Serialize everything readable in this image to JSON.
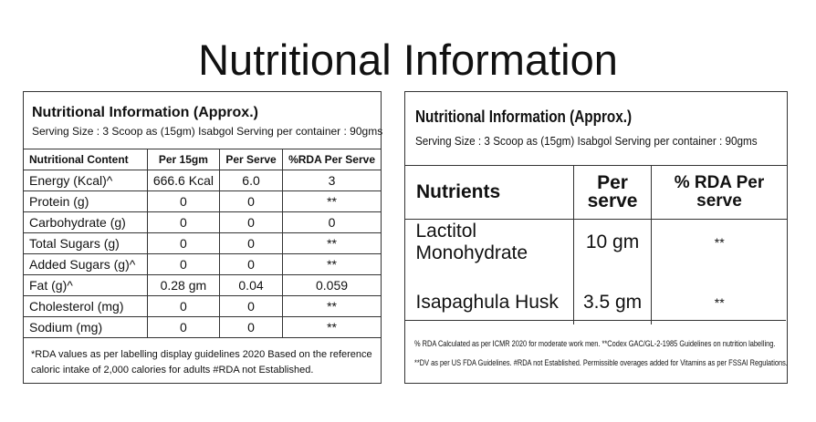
{
  "title": "Nutritional Information",
  "left": {
    "heading": "Nutritional Information (Approx.)",
    "serving": "Serving Size : 3 Scoop as (15gm) Isabgol  Serving per container : 90gms",
    "header": [
      "Nutritional Content",
      "Per 15gm",
      "Per Serve",
      "%RDA Per Serve"
    ],
    "rows": [
      [
        "Energy (Kcal)^",
        "666.6 Kcal",
        "6.0",
        "3"
      ],
      [
        "Protein (g)",
        "0",
        "0",
        "**"
      ],
      [
        "Carbohydrate (g)",
        "0",
        "0",
        "0"
      ],
      [
        "Total Sugars (g)",
        "0",
        "0",
        "**"
      ],
      [
        "Added Sugars (g)^",
        "0",
        "0",
        "**"
      ],
      [
        "Fat (g)^",
        "0.28 gm",
        "0.04",
        "0.059"
      ],
      [
        "Cholesterol (mg)",
        "0",
        "0",
        "**"
      ],
      [
        "Sodium (mg)",
        "0",
        "0",
        "**"
      ]
    ],
    "footnote": "*RDA values as per labelling display guidelines 2020 Based on the reference caloric intake of 2,000 calories for adults #RDA not Established."
  },
  "right": {
    "heading": "Nutritional Information (Approx.)",
    "serving": "Serving Size : 3 Scoop as (15gm) Isabgol  Serving per container : 90gms",
    "header": [
      "Nutrients",
      "Per serve",
      "% RDA Per serve"
    ],
    "rows": [
      [
        "Lactitol Monohydrate",
        "10 gm",
        "**"
      ],
      [
        "Isapaghula Husk",
        "3.5 gm",
        "**"
      ]
    ],
    "footnotes": [
      "% RDA Calculated as per ICMR 2020 for moderate work men. **Codex GAC/GL-2-1985 Guidelines on nutrition labelling.",
      "**DV as per US FDA Guidelines. #RDA not Established. Permissible overages added for Vitamins as per FSSAI Regulations."
    ]
  }
}
